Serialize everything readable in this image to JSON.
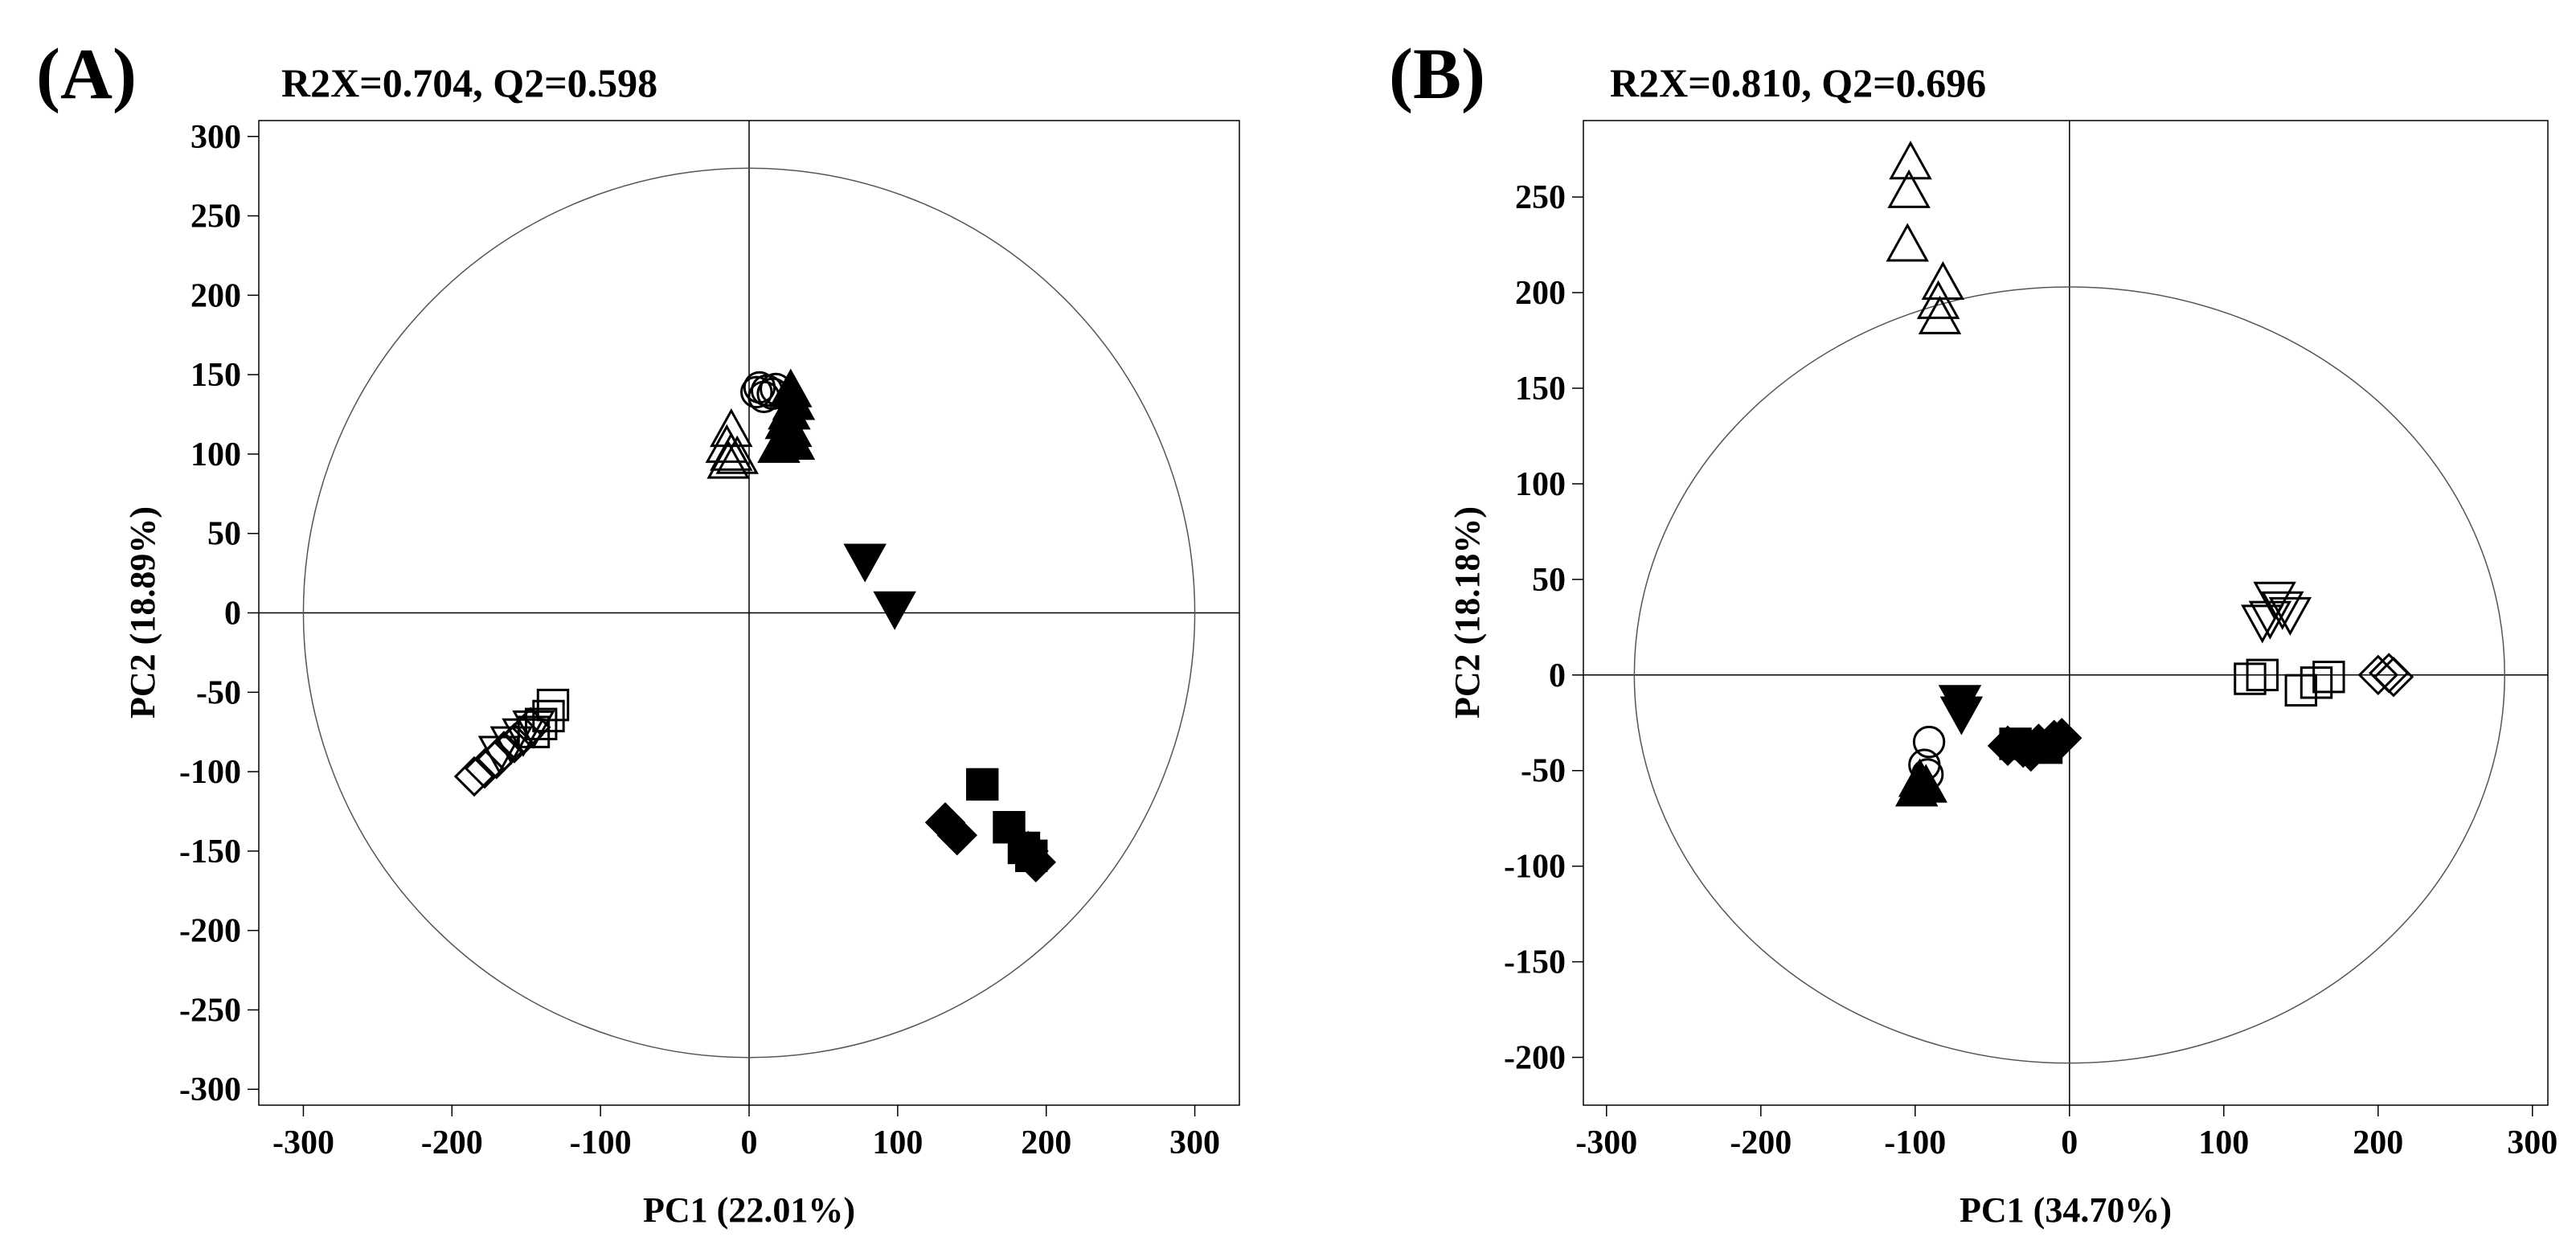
{
  "chart_data": [
    {
      "type": "scatter",
      "panel_label": "(A)",
      "title": "R2X=0.704, Q2=0.598",
      "xlabel": "PC1 (22.01%)",
      "ylabel": "PC2 (18.89%)",
      "xlim": [
        -330,
        330
      ],
      "ylim": [
        -310,
        310
      ],
      "xticks": [
        -300,
        -200,
        -100,
        0,
        100,
        200,
        300
      ],
      "yticks": [
        300,
        250,
        200,
        150,
        100,
        50,
        0,
        -50,
        -100,
        -150,
        -200,
        -250,
        -300
      ],
      "ellipse": {
        "rx": 300,
        "ry": 280
      },
      "series": [
        {
          "name": "group-open-circle",
          "marker": "circle-open",
          "points": [
            [
              7,
              142
            ],
            [
              12,
              140
            ],
            [
              16,
              138
            ],
            [
              10,
              136
            ],
            [
              18,
              141
            ],
            [
              5,
              139
            ]
          ]
        },
        {
          "name": "group-filled-triangle-up",
          "marker": "triangle-up-filled",
          "points": [
            [
              28,
              140
            ],
            [
              30,
              132
            ],
            [
              27,
              126
            ],
            [
              25,
              120
            ],
            [
              28,
              115
            ],
            [
              24,
              110
            ],
            [
              30,
              107
            ],
            [
              20,
              105
            ]
          ]
        },
        {
          "name": "group-open-triangle-up",
          "marker": "triangle-up-open",
          "points": [
            [
              -12,
              115
            ],
            [
              -15,
              105
            ],
            [
              -12,
              100
            ],
            [
              -8,
              98
            ],
            [
              -14,
              95
            ]
          ]
        },
        {
          "name": "group-filled-triangle-down",
          "marker": "triangle-down-filled",
          "points": [
            [
              78,
              33
            ],
            [
              98,
              3
            ]
          ]
        },
        {
          "name": "group-filled-square",
          "marker": "square-filled",
          "points": [
            [
              157,
              -108
            ],
            [
              175,
              -135
            ],
            [
              185,
              -148
            ],
            [
              190,
              -153
            ]
          ]
        },
        {
          "name": "group-filled-diamond",
          "marker": "diamond-filled",
          "points": [
            [
              132,
              -132
            ],
            [
              140,
              -140
            ],
            [
              193,
              -157
            ],
            [
              188,
              -150
            ]
          ]
        },
        {
          "name": "group-open-diamond",
          "marker": "diamond-open",
          "points": [
            [
              -185,
              -103
            ],
            [
              -178,
              -98
            ],
            [
              -170,
              -92
            ],
            [
              -165,
              -87
            ],
            [
              -158,
              -82
            ],
            [
              -152,
              -77
            ],
            [
              -147,
              -72
            ]
          ]
        },
        {
          "name": "group-open-triangle-down",
          "marker": "triangle-down-open",
          "points": [
            [
              -168,
              -88
            ],
            [
              -160,
              -82
            ],
            [
              -152,
              -77
            ],
            [
              -145,
              -72
            ]
          ]
        },
        {
          "name": "group-open-square",
          "marker": "square-open",
          "points": [
            [
              -140,
              -70
            ],
            [
              -135,
              -65
            ],
            [
              -132,
              -58
            ],
            [
              -145,
              -75
            ]
          ]
        }
      ]
    },
    {
      "type": "scatter",
      "panel_label": "(B)",
      "title": "R2X=0.810, Q2=0.696",
      "xlabel": "PC1 (34.70%)",
      "ylabel": "PC2 (18.18%)",
      "xlim": [
        -315,
        310
      ],
      "ylim": [
        -225,
        290
      ],
      "xticks": [
        -300,
        -200,
        -100,
        0,
        100,
        200,
        300
      ],
      "yticks": [
        250,
        200,
        150,
        100,
        50,
        0,
        -50,
        -100,
        -150,
        -200
      ],
      "ellipse": {
        "rx": 282,
        "ry": 203
      },
      "series": [
        {
          "name": "group-open-triangle-up",
          "marker": "triangle-up-open",
          "points": [
            [
              -103,
              268
            ],
            [
              -104,
              253
            ],
            [
              -105,
              225
            ],
            [
              -82,
              205
            ],
            [
              -85,
              195
            ],
            [
              -84,
              187
            ]
          ]
        },
        {
          "name": "group-open-triangle-down",
          "marker": "triangle-down-open",
          "points": [
            [
              133,
              40
            ],
            [
              138,
              35
            ],
            [
              130,
              30
            ],
            [
              143,
              32
            ],
            [
              125,
              28
            ]
          ]
        },
        {
          "name": "group-open-square",
          "marker": "square-open",
          "points": [
            [
              117,
              -2
            ],
            [
              125,
              0
            ],
            [
              150,
              -8
            ],
            [
              160,
              -4
            ],
            [
              168,
              -1
            ]
          ]
        },
        {
          "name": "group-open-diamond",
          "marker": "diamond-open",
          "points": [
            [
              200,
              0
            ],
            [
              207,
              1
            ],
            [
              210,
              -1
            ]
          ]
        },
        {
          "name": "group-filled-triangle-down",
          "marker": "triangle-down-filled",
          "points": [
            [
              -71,
              -14
            ],
            [
              -70,
              -20
            ]
          ]
        },
        {
          "name": "group-filled-diamond",
          "marker": "diamond-filled",
          "points": [
            [
              -40,
              -37
            ],
            [
              -30,
              -38
            ],
            [
              -20,
              -36
            ],
            [
              -10,
              -34
            ],
            [
              -5,
              -33
            ],
            [
              -25,
              -40
            ]
          ]
        },
        {
          "name": "group-filled-square",
          "marker": "square-filled",
          "points": [
            [
              -35,
              -36
            ],
            [
              -15,
              -38
            ]
          ]
        },
        {
          "name": "group-open-circle",
          "marker": "circle-open",
          "points": [
            [
              -91,
              -35
            ],
            [
              -94,
              -47
            ],
            [
              -92,
              -52
            ]
          ]
        },
        {
          "name": "group-filled-triangle-up",
          "marker": "triangle-up-filled",
          "points": [
            [
              -97,
              -55
            ],
            [
              -93,
              -58
            ],
            [
              -99,
              -60
            ]
          ]
        }
      ]
    }
  ]
}
